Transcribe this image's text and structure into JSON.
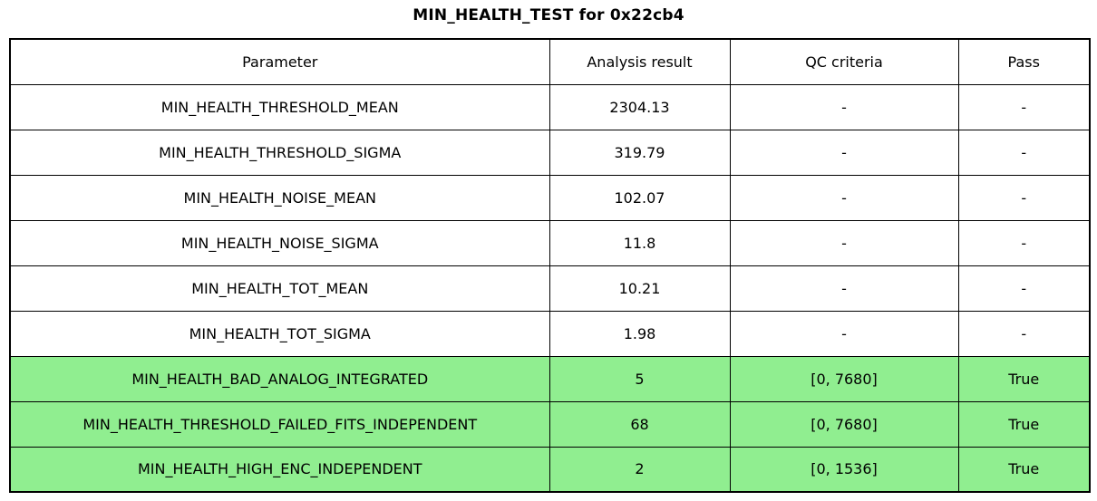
{
  "title": "MIN_HEALTH_TEST for 0x22cb4",
  "colors": {
    "pass_green": "#90EE90",
    "border": "#000000",
    "background": "#FFFFFF"
  },
  "chart_data": {
    "type": "table",
    "title": "MIN_HEALTH_TEST for 0x22cb4",
    "columns": [
      "Parameter",
      "Analysis result",
      "QC criteria",
      "Pass"
    ],
    "rows": [
      {
        "parameter": "MIN_HEALTH_THRESHOLD_MEAN",
        "result": "2304.13",
        "qc": "-",
        "pass": "-",
        "highlight": false
      },
      {
        "parameter": "MIN_HEALTH_THRESHOLD_SIGMA",
        "result": "319.79",
        "qc": "-",
        "pass": "-",
        "highlight": false
      },
      {
        "parameter": "MIN_HEALTH_NOISE_MEAN",
        "result": "102.07",
        "qc": "-",
        "pass": "-",
        "highlight": false
      },
      {
        "parameter": "MIN_HEALTH_NOISE_SIGMA",
        "result": "11.8",
        "qc": "-",
        "pass": "-",
        "highlight": false
      },
      {
        "parameter": "MIN_HEALTH_TOT_MEAN",
        "result": "10.21",
        "qc": "-",
        "pass": "-",
        "highlight": false
      },
      {
        "parameter": "MIN_HEALTH_TOT_SIGMA",
        "result": "1.98",
        "qc": "-",
        "pass": "-",
        "highlight": false
      },
      {
        "parameter": "MIN_HEALTH_BAD_ANALOG_INTEGRATED",
        "result": "5",
        "qc": "[0, 7680]",
        "pass": "True",
        "highlight": true
      },
      {
        "parameter": "MIN_HEALTH_THRESHOLD_FAILED_FITS_INDEPENDENT",
        "result": "68",
        "qc": "[0, 7680]",
        "pass": "True",
        "highlight": true
      },
      {
        "parameter": "MIN_HEALTH_HIGH_ENC_INDEPENDENT",
        "result": "2",
        "qc": "[0, 1536]",
        "pass": "True",
        "highlight": true
      }
    ]
  }
}
